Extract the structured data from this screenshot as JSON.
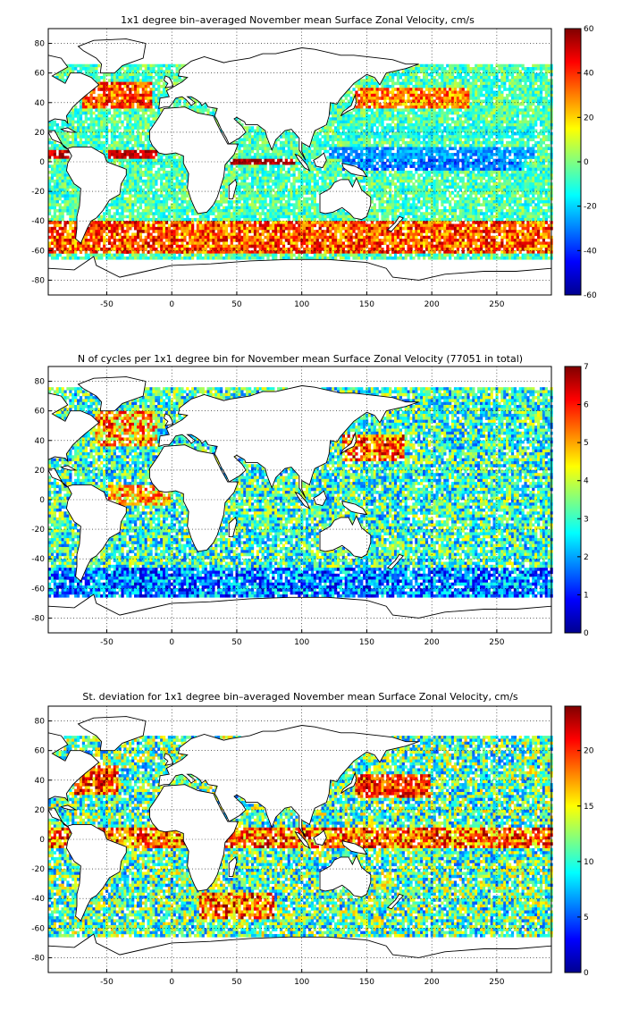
{
  "chart_data": [
    {
      "type": "heatmap",
      "title": "1x1 degree bin–averaged November mean Surface Zonal Velocity, cm/s",
      "xlabel": "",
      "ylabel": "",
      "xlim": [
        -95,
        292
      ],
      "ylim": [
        -90,
        90
      ],
      "x_ticks": [
        "-50",
        "0",
        "50",
        "100",
        "150",
        "200",
        "250"
      ],
      "y_ticks": [
        "80",
        "60",
        "40",
        "20",
        "0",
        "-20",
        "-40",
        "-60",
        "-80"
      ],
      "colorbar": {
        "min": -60,
        "max": 60,
        "ticks": [
          "60",
          "40",
          "20",
          "0",
          "-20",
          "-40",
          "-60"
        ]
      },
      "colormap": "jet",
      "grid": true
    },
    {
      "type": "heatmap",
      "title": "N of cycles per 1x1 degree bin for November mean Surface Zonal Velocity (77051 in total)",
      "xlabel": "",
      "ylabel": "",
      "xlim": [
        -95,
        292
      ],
      "ylim": [
        -90,
        90
      ],
      "x_ticks": [
        "-50",
        "0",
        "50",
        "100",
        "150",
        "200",
        "250"
      ],
      "y_ticks": [
        "80",
        "60",
        "40",
        "20",
        "0",
        "-20",
        "-40",
        "-60",
        "-80"
      ],
      "colorbar": {
        "min": 0,
        "max": 7,
        "ticks": [
          "7",
          "6",
          "5",
          "4",
          "3",
          "2",
          "1",
          "0"
        ]
      },
      "colormap": "jet",
      "grid": true
    },
    {
      "type": "heatmap",
      "title": "St. deviation for 1x1 degree bin–averaged November mean Surface Zonal Velocity, cm/s",
      "xlabel": "",
      "ylabel": "",
      "xlim": [
        -95,
        292
      ],
      "ylim": [
        -90,
        90
      ],
      "x_ticks": [
        "-50",
        "0",
        "50",
        "100",
        "150",
        "200",
        "250"
      ],
      "y_ticks": [
        "80",
        "60",
        "40",
        "20",
        "0",
        "-20",
        "-40",
        "-60",
        "-80"
      ],
      "colorbar": {
        "min": 0,
        "max": 24,
        "ticks": [
          "20",
          "15",
          "10",
          "5",
          "0"
        ]
      },
      "colormap": "jet",
      "grid": true
    }
  ]
}
